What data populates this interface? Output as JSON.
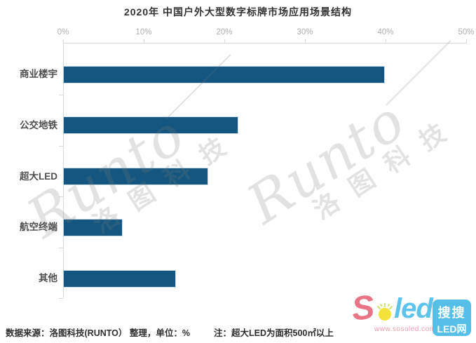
{
  "title": "2020年 中国户外大型数字标牌市场应用场景结构",
  "chart_data": {
    "type": "bar",
    "orientation": "horizontal",
    "title": "2020年 中国户外大型数字标牌市场应用场景结构",
    "categories": [
      "商业楼宇",
      "公交地铁",
      "超大LED",
      "航空终端",
      "其他"
    ],
    "values": [
      39.7,
      21.6,
      17.8,
      7.2,
      13.8
    ],
    "unit": "%",
    "xlim": [
      0,
      50
    ],
    "x_ticks": [
      "0%",
      "10%",
      "20%",
      "30%",
      "40%",
      "50%"
    ],
    "grid": false,
    "legend": "none",
    "bar_color": "#14567f",
    "axis_color": "#d9d9d9",
    "tick_label_color": "#adadad"
  },
  "footer": {
    "source": "数据来源：洛图科技(RUNTO） 整理，单位：%",
    "note": "注：超大LED为面积500㎡以上"
  },
  "watermark": {
    "brand": "Runto",
    "company": "洛图科技"
  },
  "logo": {
    "s": "S",
    "led": "led",
    "url": "www.sosoled.com",
    "box_line1": "搜搜",
    "box_line2": "LED网"
  }
}
